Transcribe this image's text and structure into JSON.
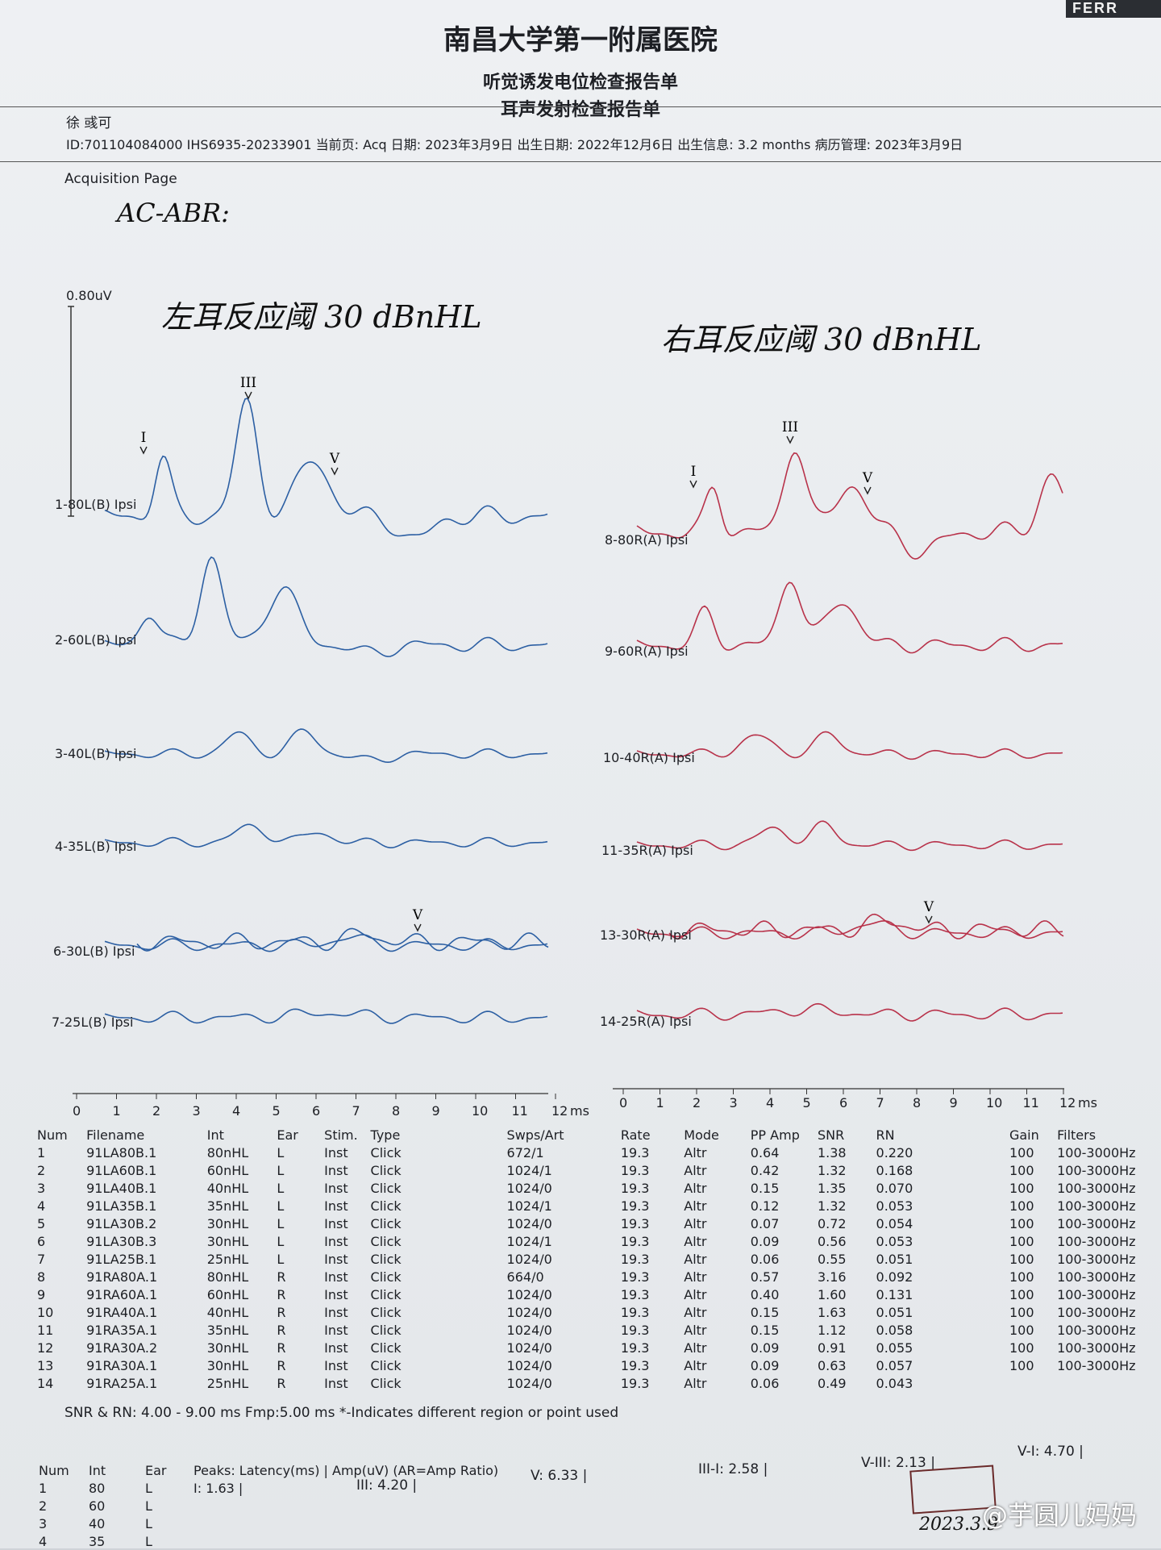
{
  "header": {
    "corner": "FERR",
    "hospital": "南昌大学第一附属医院",
    "subtitle1": "听觉诱发电位检查报告单",
    "subtitle2": "耳声发射检查报告单",
    "patient_name": "徐 彧可",
    "info_line": "ID:701104084000 IHS6935-20233901 当前页: Acq  日期: 2023年3月9日  出生日期: 2022年12月6日  出生信息: 3.2 months  病历管理: 2023年3月9日",
    "page_label": "Acquisition Page"
  },
  "handwriting": {
    "heading": "AC-ABR:",
    "left_threshold": "左耳反应阈 30 dBnHL",
    "right_threshold": "右耳反应阈 30 dBnHL",
    "signature": "2023.3.9"
  },
  "scale": {
    "label": "0.80uV"
  },
  "peaks": {
    "I": "I",
    "III": "III",
    "V": "V"
  },
  "left_traces": [
    "1-80L(B) Ipsi",
    "2-60L(B) Ipsi",
    "3-40L(B) Ipsi",
    "4-35L(B) Ipsi",
    "6-30L(B) Ipsi",
    "7-25L(B) Ipsi"
  ],
  "right_traces": [
    "8-80R(A) Ipsi",
    "9-60R(A) Ipsi",
    "10-40R(A) Ipsi",
    "11-35R(A) Ipsi",
    "13-30R(A) Ipsi",
    "14-25R(A) Ipsi"
  ],
  "axis": {
    "ticks": [
      "0",
      "1",
      "2",
      "3",
      "4",
      "5",
      "6",
      "7",
      "8",
      "9",
      "10",
      "11",
      "12"
    ],
    "unit": "ms"
  },
  "colors": {
    "left": "#2c5fa3",
    "right": "#b8324a"
  },
  "table": {
    "headers": [
      "Num",
      "Filename",
      "Int",
      "Ear",
      "Stim.",
      "Type",
      "Swps/Art",
      "Rate",
      "Mode",
      "PP Amp",
      "SNR",
      "RN",
      "Gain",
      "Filters"
    ],
    "rows": [
      [
        "1",
        "91LA80B.1",
        "80nHL",
        "L",
        "Inst",
        "Click",
        "672/1",
        "19.3",
        "Altr",
        "0.64",
        "1.38",
        "0.220",
        "100",
        "100-3000Hz"
      ],
      [
        "2",
        "91LA60B.1",
        "60nHL",
        "L",
        "Inst",
        "Click",
        "1024/1",
        "19.3",
        "Altr",
        "0.42",
        "1.32",
        "0.168",
        "100",
        "100-3000Hz"
      ],
      [
        "3",
        "91LA40B.1",
        "40nHL",
        "L",
        "Inst",
        "Click",
        "1024/0",
        "19.3",
        "Altr",
        "0.15",
        "1.35",
        "0.070",
        "100",
        "100-3000Hz"
      ],
      [
        "4",
        "91LA35B.1",
        "35nHL",
        "L",
        "Inst",
        "Click",
        "1024/1",
        "19.3",
        "Altr",
        "0.12",
        "1.32",
        "0.053",
        "100",
        "100-3000Hz"
      ],
      [
        "5",
        "91LA30B.2",
        "30nHL",
        "L",
        "Inst",
        "Click",
        "1024/0",
        "19.3",
        "Altr",
        "0.07",
        "0.72",
        "0.054",
        "100",
        "100-3000Hz"
      ],
      [
        "6",
        "91LA30B.3",
        "30nHL",
        "L",
        "Inst",
        "Click",
        "1024/1",
        "19.3",
        "Altr",
        "0.09",
        "0.56",
        "0.053",
        "100",
        "100-3000Hz"
      ],
      [
        "7",
        "91LA25B.1",
        "25nHL",
        "L",
        "Inst",
        "Click",
        "1024/0",
        "19.3",
        "Altr",
        "0.06",
        "0.55",
        "0.051",
        "100",
        "100-3000Hz"
      ],
      [
        "8",
        "91RA80A.1",
        "80nHL",
        "R",
        "Inst",
        "Click",
        "664/0",
        "19.3",
        "Altr",
        "0.57",
        "3.16",
        "0.092",
        "100",
        "100-3000Hz"
      ],
      [
        "9",
        "91RA60A.1",
        "60nHL",
        "R",
        "Inst",
        "Click",
        "1024/0",
        "19.3",
        "Altr",
        "0.40",
        "1.60",
        "0.131",
        "100",
        "100-3000Hz"
      ],
      [
        "10",
        "91RA40A.1",
        "40nHL",
        "R",
        "Inst",
        "Click",
        "1024/0",
        "19.3",
        "Altr",
        "0.15",
        "1.63",
        "0.051",
        "100",
        "100-3000Hz"
      ],
      [
        "11",
        "91RA35A.1",
        "35nHL",
        "R",
        "Inst",
        "Click",
        "1024/0",
        "19.3",
        "Altr",
        "0.15",
        "1.12",
        "0.058",
        "100",
        "100-3000Hz"
      ],
      [
        "12",
        "91RA30A.2",
        "30nHL",
        "R",
        "Inst",
        "Click",
        "1024/0",
        "19.3",
        "Altr",
        "0.09",
        "0.91",
        "0.055",
        "100",
        "100-3000Hz"
      ],
      [
        "13",
        "91RA30A.1",
        "30nHL",
        "R",
        "Inst",
        "Click",
        "1024/0",
        "19.3",
        "Altr",
        "0.09",
        "0.63",
        "0.057",
        "100",
        "100-3000Hz"
      ],
      [
        "14",
        "91RA25A.1",
        "25nHL",
        "R",
        "Inst",
        "Click",
        "1024/0",
        "19.3",
        "Altr",
        "0.06",
        "0.49",
        "0.043",
        "",
        ""
      ]
    ]
  },
  "notes": {
    "snr_line": "SNR & RN: 4.00 - 9.00 ms    Fmp:5.00 ms *-Indicates different region or point used"
  },
  "peaks_table": {
    "headers": [
      "Num",
      "Int",
      "Ear",
      "Peaks: Latency(ms) | Amp(uV) (AR=Amp Ratio)"
    ],
    "rows": [
      [
        "1",
        "80",
        "L",
        "I: 1.63 |"
      ],
      [
        "2",
        "60",
        "L",
        ""
      ],
      [
        "3",
        "40",
        "L",
        ""
      ],
      [
        "4",
        "35",
        "L",
        ""
      ]
    ],
    "iii_value": "III: 4.20 |",
    "v_value": "V: 6.33 |",
    "iii_i": "III-I: 2.58 |",
    "v_iii": "V-III: 2.13 |",
    "v_i": "V-I: 4.70 |"
  },
  "watermark": "@芋圆儿妈妈"
}
